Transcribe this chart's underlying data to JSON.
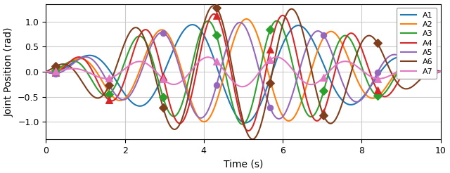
{
  "title": "",
  "xlabel": "Time (s)",
  "ylabel": "Joint Position (rad)",
  "xlim": [
    0,
    10
  ],
  "ylim": [
    -1.35,
    1.35
  ],
  "xticks": [
    0,
    2,
    4,
    6,
    8,
    10
  ],
  "yticks": [
    -1.0,
    -0.5,
    0.0,
    0.5,
    1.0
  ],
  "series": [
    {
      "label": "A1",
      "color": "#1f77b4",
      "marker": null,
      "amp": 1.02,
      "freq": 0.38,
      "phase": -0.55
    },
    {
      "label": "A2",
      "color": "#ff7f0e",
      "marker": null,
      "amp": 1.05,
      "freq": 0.48,
      "phase": -0.5
    },
    {
      "label": "A3",
      "color": "#2ca02c",
      "marker": "D",
      "amp": 1.05,
      "freq": 0.6,
      "phase": -0.5
    },
    {
      "label": "A4",
      "color": "#d62728",
      "marker": "^",
      "amp": 1.18,
      "freq": 0.6,
      "phase": -1.1
    },
    {
      "label": "A5",
      "color": "#9467bd",
      "marker": "o",
      "amp": 0.98,
      "freq": 0.5,
      "phase": -1.3
    },
    {
      "label": "A6",
      "color": "#7f3f1e",
      "marker": "D",
      "amp": 1.35,
      "freq": 0.5,
      "phase": 0.82
    },
    {
      "label": "A7",
      "color": "#e377c2",
      "marker": "^",
      "amp": 0.3,
      "freq": 0.6,
      "phase": -0.5
    }
  ],
  "marker_every": {
    "A3": 8,
    "A4": 8,
    "A5": 8,
    "A6": 8,
    "A7": 8
  },
  "figsize": [
    6.4,
    2.46
  ],
  "dpi": 100,
  "background_color": "#ffffff",
  "grid_color": "#cccccc",
  "legend_fontsize": 8,
  "axis_fontsize": 10,
  "tick_fontsize": 9
}
